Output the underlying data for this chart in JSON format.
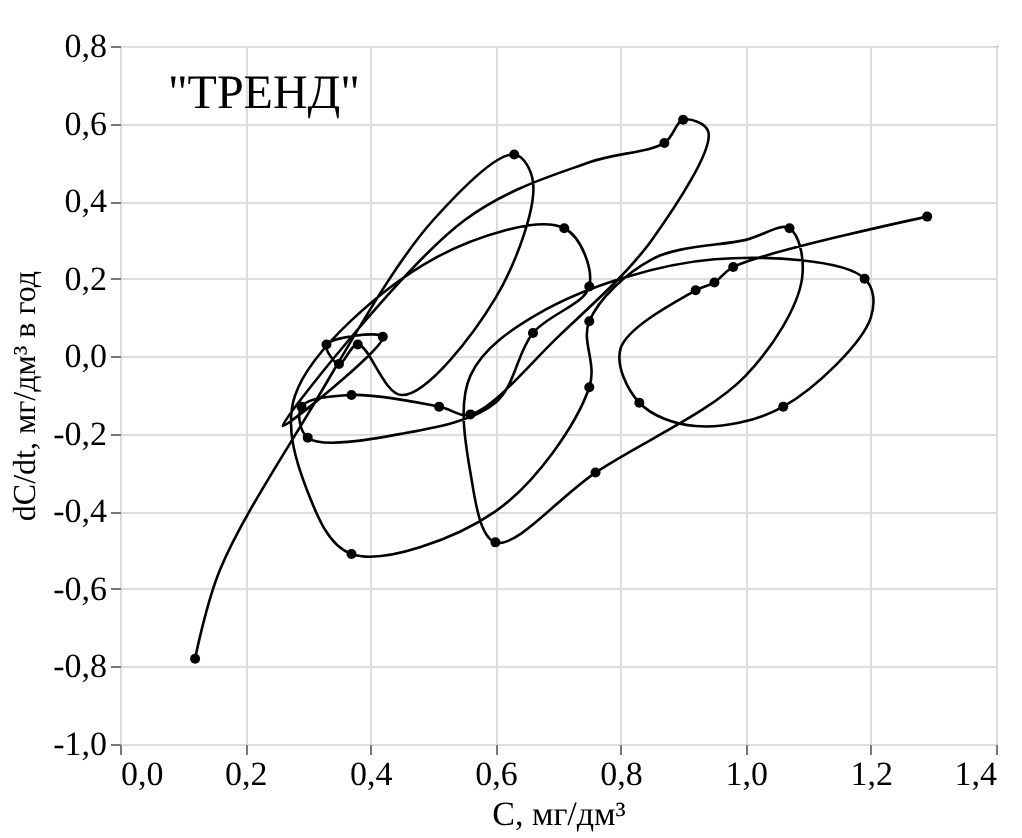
{
  "chart_data": {
    "type": "line",
    "xlabel": "C, мг/дм³",
    "ylabel": "dC/dt, мг/дм³ в год",
    "annotations": [
      "\"ТРЕНД\""
    ],
    "xlim": [
      0,
      1.4
    ],
    "xticks": [
      {
        "value": 0,
        "label": "0,0"
      },
      {
        "value": 0.2,
        "label": "0,2"
      },
      {
        "value": 0.4,
        "label": "0,4"
      },
      {
        "value": 0.6,
        "label": "0,6"
      },
      {
        "value": 0.8,
        "label": "0,8"
      },
      {
        "value": 1,
        "label": "1,0"
      },
      {
        "value": 1.2,
        "label": "1,2"
      },
      {
        "value": 1.4,
        "label": "1,4"
      }
    ],
    "ylim": [
      -1,
      0.8
    ],
    "yticks": [
      {
        "value": -1,
        "label": "-1,0"
      },
      {
        "value": -0.8,
        "label": "-0,8"
      },
      {
        "value": -0.6,
        "label": "-0,6"
      },
      {
        "value": -0.4,
        "label": "-0,4"
      },
      {
        "value": -0.2,
        "label": "-0,2"
      },
      {
        "value": 0,
        "label": "0,0"
      },
      {
        "value": 0.2,
        "label": "0,2"
      },
      {
        "value": 0.4,
        "label": "0,4"
      },
      {
        "value": 0.6,
        "label": "0,6"
      },
      {
        "value": 0.8,
        "label": "0,8"
      }
    ],
    "grid": true,
    "series": [
      {
        "color": "#000000",
        "marker": "none",
        "x": [
          0.12,
          0.16,
          0.3,
          0.5,
          0.63,
          0.66,
          0.6,
          0.45,
          0.38,
          0.35,
          0.33,
          0.42,
          0.26,
          0.55,
          0.75,
          0.87,
          0.9,
          0.94,
          0.85,
          0.7,
          0.56,
          0.51,
          0.37,
          0.29,
          0.3,
          0.45,
          0.6,
          0.66,
          0.75,
          0.71,
          0.5,
          0.28,
          0.3,
          0.37,
          0.6,
          0.75,
          0.75,
          0.85,
          1,
          1.07,
          1.09,
          1,
          0.76,
          0.6,
          0.56,
          0.56,
          0.68,
          0.95,
          1.19,
          1.2,
          1.06,
          0.92,
          0.83,
          0.8,
          0.92,
          0.95,
          0.98,
          1.29
        ],
        "values": [
          -0.78,
          -0.55,
          -0.15,
          0.35,
          0.52,
          0.45,
          0.15,
          -0.1,
          0.03,
          -0.02,
          0.03,
          0.05,
          -0.18,
          0.35,
          0.5,
          0.55,
          0.61,
          0.58,
          0.3,
          0.05,
          -0.15,
          -0.13,
          -0.1,
          -0.13,
          -0.21,
          -0.2,
          -0.12,
          0.06,
          0.18,
          0.33,
          0.25,
          -0.1,
          -0.35,
          -0.51,
          -0.4,
          -0.08,
          0.09,
          0.25,
          0.3,
          0.33,
          0.2,
          -0.05,
          -0.3,
          -0.48,
          -0.3,
          -0.05,
          0.12,
          0.25,
          0.2,
          0.1,
          -0.13,
          -0.18,
          -0.12,
          0.02,
          0.17,
          0.19,
          0.23,
          0.36
        ]
      },
      {
        "type": "scatter",
        "color": "#000000",
        "marker": "circle",
        "x": [
          0.12,
          0.37,
          0.63,
          0.71,
          0.9,
          0.87,
          1.07,
          1.29,
          0.98,
          0.95,
          0.92,
          1.19,
          0.83,
          1.06,
          0.75,
          0.75,
          0.75,
          0.76,
          0.6,
          0.29,
          0.37,
          0.3,
          0.51,
          0.56,
          0.33,
          0.38,
          0.42,
          0.35,
          0.66
        ],
        "values": [
          -0.78,
          -0.51,
          0.52,
          0.33,
          0.61,
          0.55,
          0.33,
          0.36,
          0.23,
          0.19,
          0.17,
          0.2,
          -0.12,
          -0.13,
          0.18,
          0.09,
          -0.08,
          -0.3,
          -0.48,
          -0.13,
          -0.1,
          -0.21,
          -0.13,
          -0.15,
          0.03,
          0.03,
          0.05,
          -0.02,
          0.06
        ]
      }
    ]
  }
}
